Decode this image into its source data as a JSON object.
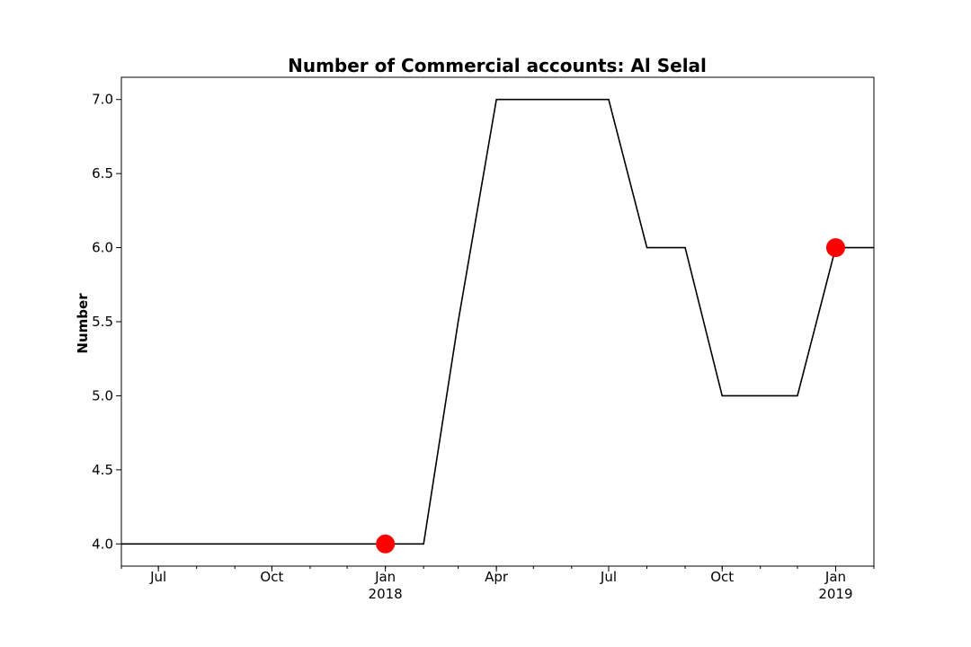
{
  "chart_data": {
    "type": "line",
    "title": "Number of Commercial accounts: Al Selal",
    "xlabel": "",
    "ylabel": "Number",
    "x": [
      "2017-06-01",
      "2017-07-01",
      "2017-08-01",
      "2017-09-01",
      "2017-10-01",
      "2017-11-01",
      "2017-12-01",
      "2018-01-01",
      "2018-02-01",
      "2018-03-01",
      "2018-04-01",
      "2018-05-01",
      "2018-06-01",
      "2018-07-01",
      "2018-08-01",
      "2018-09-01",
      "2018-10-01",
      "2018-11-01",
      "2018-12-01",
      "2019-01-01",
      "2019-02-01"
    ],
    "series": [
      {
        "values": [
          4,
          4,
          4,
          4,
          4,
          4,
          4,
          4,
          4,
          5.5,
          7,
          7,
          7,
          7,
          6,
          6,
          5,
          5,
          5,
          6,
          6
        ],
        "color": "#000000"
      }
    ],
    "highlights": [
      {
        "x": "2018-01-01",
        "y": 4,
        "color": "#ff0000"
      },
      {
        "x": "2019-01-01",
        "y": 6,
        "color": "#ff0000"
      }
    ],
    "xlim": [
      "2017-06-01",
      "2019-02-01"
    ],
    "ylim": [
      3.85,
      7.15
    ],
    "yticks": [
      4.0,
      4.5,
      5.0,
      5.5,
      6.0,
      6.5,
      7.0
    ],
    "ytick_labels": [
      "4.0",
      "4.5",
      "5.0",
      "5.5",
      "6.0",
      "6.5",
      "7.0"
    ],
    "xticks_major": [
      {
        "x": "2017-07-01",
        "label": "Jul",
        "sublabel": ""
      },
      {
        "x": "2017-10-01",
        "label": "Oct",
        "sublabel": ""
      },
      {
        "x": "2018-01-01",
        "label": "Jan",
        "sublabel": "2018"
      },
      {
        "x": "2018-04-01",
        "label": "Apr",
        "sublabel": ""
      },
      {
        "x": "2018-07-01",
        "label": "Jul",
        "sublabel": ""
      },
      {
        "x": "2018-10-01",
        "label": "Oct",
        "sublabel": ""
      },
      {
        "x": "2019-01-01",
        "label": "Jan",
        "sublabel": "2019"
      }
    ],
    "grid": false,
    "legend": "none"
  }
}
